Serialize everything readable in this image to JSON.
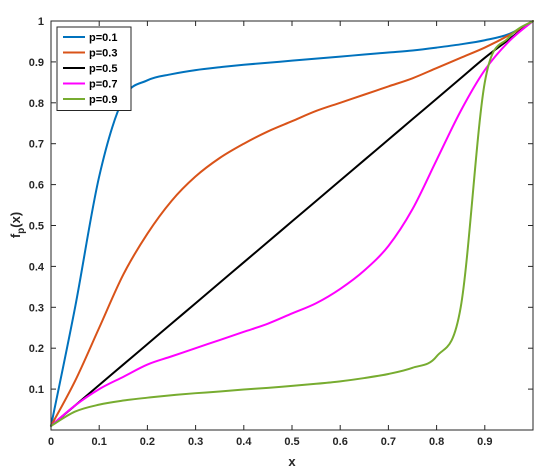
{
  "chart_data": {
    "type": "line",
    "xlabel": "x",
    "ylabel": "f_p(x)",
    "xlim": [
      0,
      1
    ],
    "ylim": [
      0,
      1
    ],
    "x_ticks": [
      "0",
      "0.1",
      "0.2",
      "0.3",
      "0.4",
      "0.5",
      "0.6",
      "0.7",
      "0.8",
      "0.9"
    ],
    "y_ticks": [
      "0.1",
      "0.2",
      "0.3",
      "0.4",
      "0.5",
      "0.6",
      "0.7",
      "0.8",
      "0.9",
      "1"
    ],
    "grid": false,
    "legend_position": "top-left",
    "x": [
      0,
      0.05,
      0.1,
      0.15,
      0.2,
      0.25,
      0.3,
      0.35,
      0.4,
      0.45,
      0.5,
      0.55,
      0.6,
      0.65,
      0.7,
      0.75,
      0.8,
      0.85,
      0.9,
      0.95,
      1
    ],
    "series": [
      {
        "name": "p=0.1",
        "color": "#0072BD",
        "values": [
          0.01,
          0.3,
          0.62,
          0.81,
          0.855,
          0.87,
          0.88,
          0.887,
          0.893,
          0.898,
          0.903,
          0.908,
          0.913,
          0.918,
          0.923,
          0.928,
          0.935,
          0.943,
          0.953,
          0.968,
          1.0
        ]
      },
      {
        "name": "p=0.3",
        "color": "#D95319",
        "values": [
          0.01,
          0.12,
          0.25,
          0.38,
          0.48,
          0.56,
          0.62,
          0.665,
          0.7,
          0.73,
          0.755,
          0.78,
          0.8,
          0.82,
          0.84,
          0.86,
          0.885,
          0.91,
          0.935,
          0.965,
          1.0
        ]
      },
      {
        "name": "p=0.5",
        "color": "#000000",
        "values": [
          0.01,
          0.06,
          0.11,
          0.16,
          0.21,
          0.26,
          0.31,
          0.36,
          0.41,
          0.46,
          0.51,
          0.56,
          0.61,
          0.66,
          0.71,
          0.76,
          0.81,
          0.86,
          0.91,
          0.955,
          1.0
        ]
      },
      {
        "name": "p=0.7",
        "color": "#FF00FF",
        "values": [
          0.01,
          0.06,
          0.1,
          0.13,
          0.16,
          0.18,
          0.2,
          0.22,
          0.24,
          0.26,
          0.285,
          0.31,
          0.345,
          0.39,
          0.45,
          0.54,
          0.66,
          0.78,
          0.88,
          0.95,
          1.0
        ]
      },
      {
        "name": "p=0.9",
        "color": "#77AC30",
        "values": [
          0.01,
          0.045,
          0.062,
          0.072,
          0.079,
          0.085,
          0.09,
          0.094,
          0.099,
          0.103,
          0.108,
          0.113,
          0.119,
          0.127,
          0.137,
          0.152,
          0.18,
          0.3,
          0.85,
          0.96,
          1.0
        ]
      }
    ]
  }
}
